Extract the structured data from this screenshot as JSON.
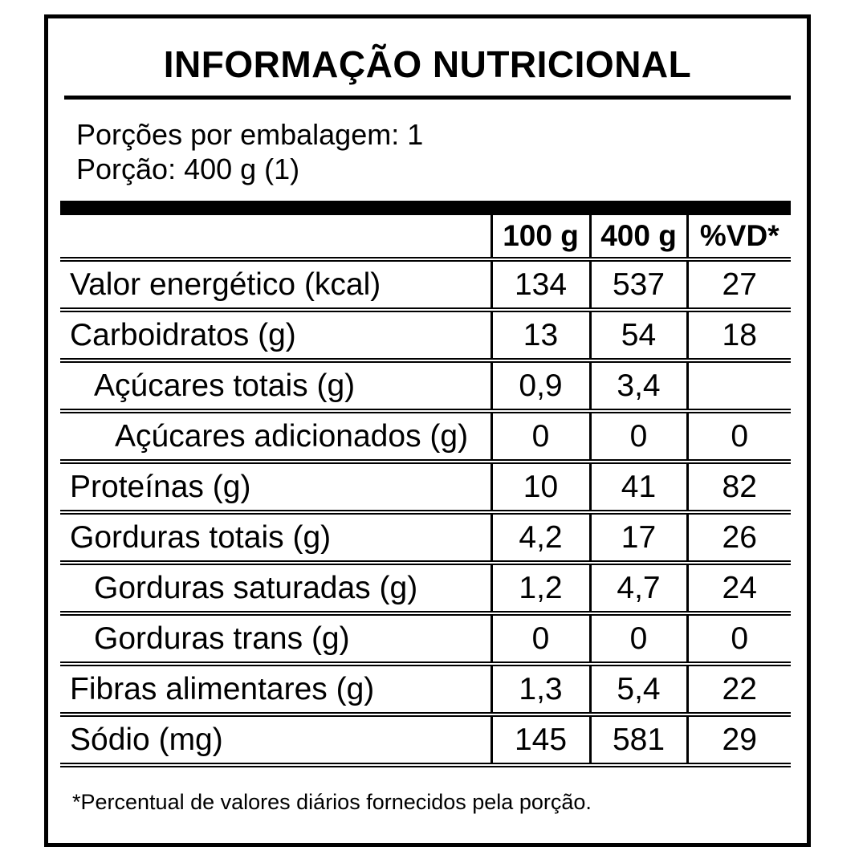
{
  "label": {
    "title": "INFORMAÇÃO NUTRICIONAL",
    "servings_per_package": "Porções por embalagem: 1",
    "serving_size": "Porção: 400 g (1)",
    "footnote": "*Percentual de valores diários fornecidos pela porção."
  },
  "table": {
    "columns": [
      "",
      "100 g",
      "400 g",
      "%VD*"
    ],
    "rows": [
      {
        "name": "Valor energético (kcal)",
        "per_100g": "134",
        "per_400g": "537",
        "vd_percent": "27",
        "indent": 0
      },
      {
        "name": "Carboidratos (g)",
        "per_100g": "13",
        "per_400g": "54",
        "vd_percent": "18",
        "indent": 0
      },
      {
        "name": "Açúcares totais (g)",
        "per_100g": "0,9",
        "per_400g": "3,4",
        "vd_percent": "",
        "indent": 1
      },
      {
        "name": "Açúcares adicionados (g)",
        "per_100g": "0",
        "per_400g": "0",
        "vd_percent": "0",
        "indent": 2
      },
      {
        "name": "Proteínas (g)",
        "per_100g": "10",
        "per_400g": "41",
        "vd_percent": "82",
        "indent": 0
      },
      {
        "name": "Gorduras totais (g)",
        "per_100g": "4,2",
        "per_400g": "17",
        "vd_percent": "26",
        "indent": 0
      },
      {
        "name": "Gorduras saturadas (g)",
        "per_100g": "1,2",
        "per_400g": "4,7",
        "vd_percent": "24",
        "indent": 1
      },
      {
        "name": "Gorduras trans (g)",
        "per_100g": "0",
        "per_400g": "0",
        "vd_percent": "0",
        "indent": 1
      },
      {
        "name": "Fibras alimentares (g)",
        "per_100g": "1,3",
        "per_400g": "5,4",
        "vd_percent": "22",
        "indent": 0
      },
      {
        "name": "Sódio (mg)",
        "per_100g": "145",
        "per_400g": "581",
        "vd_percent": "29",
        "indent": 0
      }
    ]
  },
  "colors": {
    "text": "#000000",
    "border": "#000000",
    "background": "#ffffff"
  }
}
